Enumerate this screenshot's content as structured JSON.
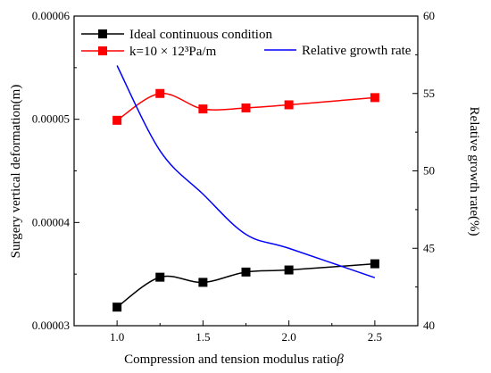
{
  "chart_data": {
    "type": "line",
    "x_values": [
      1.0,
      1.25,
      1.5,
      1.75,
      2.0,
      2.5
    ],
    "xlabel": "Compression and tension modulus ratio",
    "xlabel_symbol": "β",
    "ylabel_left": "Surgery vertical deformation(m)",
    "ylabel_right": "Relative growth rate(%)",
    "xlim": [
      0.75,
      2.75
    ],
    "ylim_left": [
      3e-05,
      6e-05
    ],
    "ylim_right": [
      40,
      60
    ],
    "x_ticks": [
      "1.0",
      "1.5",
      "2.0",
      "2.5"
    ],
    "x_tick_values": [
      1.0,
      1.5,
      2.0,
      2.5
    ],
    "y_left_ticks": [
      "0.00003",
      "0.00004",
      "0.00005",
      "0.00006"
    ],
    "y_left_tick_values": [
      3e-05,
      4e-05,
      5e-05,
      6e-05
    ],
    "y_right_ticks": [
      "40",
      "45",
      "50",
      "55",
      "60"
    ],
    "y_right_tick_values": [
      40,
      45,
      50,
      55,
      60
    ],
    "grid": false,
    "legend_position": "top",
    "series": [
      {
        "name": "Ideal continuous condition",
        "axis": "left",
        "color": "#000000",
        "marker": "square",
        "values": [
          3.18e-05,
          3.47e-05,
          3.42e-05,
          3.52e-05,
          3.54e-05,
          3.6e-05
        ]
      },
      {
        "name": "k=10 × 12³Pa/m",
        "axis": "left",
        "color": "#ff0000",
        "marker": "square",
        "values": [
          4.99e-05,
          5.25e-05,
          5.1e-05,
          5.11e-05,
          5.14e-05,
          5.21e-05
        ]
      },
      {
        "name": "Relative growth rate",
        "axis": "right",
        "color": "#0000ff",
        "marker": "none",
        "values": [
          56.8,
          51.3,
          48.5,
          45.9,
          45.0,
          43.1
        ]
      }
    ]
  }
}
